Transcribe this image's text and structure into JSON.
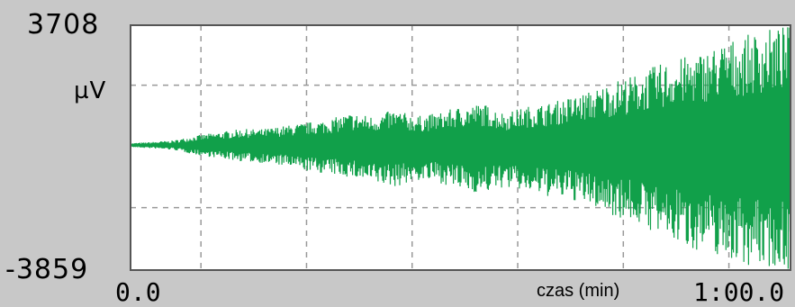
{
  "chart_data": {
    "type": "line",
    "title": "",
    "ylabel": "µV",
    "xlabel": "czas (min)",
    "y_max_label": "3708",
    "y_min_label": "-3859",
    "x_start_label": "0.0",
    "x_end_label": "1:00.0",
    "ylim": [
      -3859,
      3708
    ],
    "xlim": [
      0,
      60
    ],
    "grid": true,
    "x_gridlines": [
      6.4,
      16.0,
      25.6,
      35.2,
      44.8,
      54.4
    ],
    "y_gridlines": [
      1854,
      -1930
    ],
    "series_color": "#11a04a",
    "envelope": {
      "x": [
        0,
        2,
        4,
        6,
        8,
        10,
        12,
        14,
        16,
        18,
        20,
        22,
        24,
        26,
        28,
        30,
        32,
        34,
        36,
        38,
        40,
        42,
        44,
        46,
        48,
        50,
        52,
        54,
        56,
        58,
        60
      ],
      "upper": [
        60,
        100,
        150,
        300,
        400,
        500,
        500,
        600,
        700,
        800,
        1000,
        900,
        1100,
        900,
        1000,
        1200,
        1300,
        1000,
        1200,
        1300,
        1500,
        1700,
        2000,
        2200,
        2500,
        2700,
        2900,
        3200,
        3400,
        3600,
        3708
      ],
      "lower": [
        -60,
        -100,
        -150,
        -300,
        -400,
        -500,
        -550,
        -650,
        -800,
        -900,
        -1000,
        -1200,
        -1300,
        -1100,
        -1150,
        -1400,
        -1500,
        -1300,
        -1450,
        -1600,
        -1700,
        -1900,
        -2200,
        -2400,
        -2800,
        -3100,
        -3300,
        -3500,
        -3700,
        -3800,
        -3859
      ]
    }
  },
  "colors": {
    "frame_bg": "#c8c8c8",
    "plot_bg": "#ffffff",
    "grid": "#999999"
  }
}
